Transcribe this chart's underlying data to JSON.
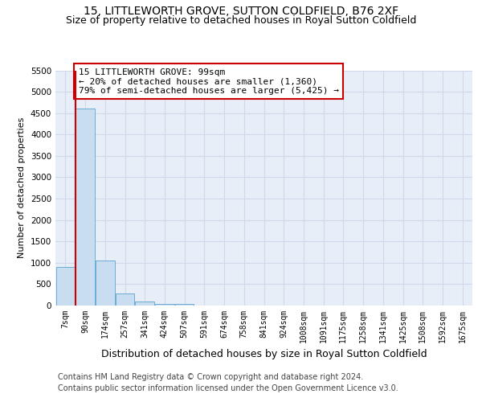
{
  "title": "15, LITTLEWORTH GROVE, SUTTON COLDFIELD, B76 2XF",
  "subtitle": "Size of property relative to detached houses in Royal Sutton Coldfield",
  "xlabel": "Distribution of detached houses by size in Royal Sutton Coldfield",
  "ylabel": "Number of detached properties",
  "bar_labels": [
    "7sqm",
    "90sqm",
    "174sqm",
    "257sqm",
    "341sqm",
    "424sqm",
    "507sqm",
    "591sqm",
    "674sqm",
    "758sqm",
    "841sqm",
    "924sqm",
    "1008sqm",
    "1091sqm",
    "1175sqm",
    "1258sqm",
    "1341sqm",
    "1425sqm",
    "1508sqm",
    "1592sqm",
    "1675sqm"
  ],
  "bar_values": [
    900,
    4600,
    1060,
    280,
    90,
    40,
    30,
    0,
    0,
    0,
    0,
    0,
    0,
    0,
    0,
    0,
    0,
    0,
    0,
    0,
    0
  ],
  "bar_color": "#c9ddf0",
  "bar_edgecolor": "#6aacd6",
  "property_line_color": "#cc0000",
  "property_line_x": 0.52,
  "ylim": [
    0,
    5500
  ],
  "yticks": [
    0,
    500,
    1000,
    1500,
    2000,
    2500,
    3000,
    3500,
    4000,
    4500,
    5000,
    5500
  ],
  "annotation_title": "15 LITTLEWORTH GROVE: 99sqm",
  "annotation_line1": "← 20% of detached houses are smaller (1,360)",
  "annotation_line2": "79% of semi-detached houses are larger (5,425) →",
  "annotation_box_edgecolor": "#cc0000",
  "grid_color": "#d0d8ea",
  "bg_color": "#e8eef8",
  "footer_line1": "Contains HM Land Registry data © Crown copyright and database right 2024.",
  "footer_line2": "Contains public sector information licensed under the Open Government Licence v3.0.",
  "title_fontsize": 10,
  "subtitle_fontsize": 9,
  "tick_fontsize": 7,
  "ylabel_fontsize": 8,
  "xlabel_fontsize": 9,
  "annotation_fontsize": 8,
  "footer_fontsize": 7
}
